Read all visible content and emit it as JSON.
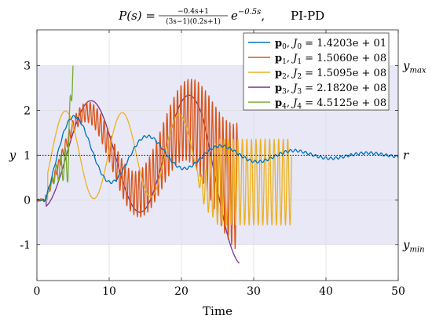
{
  "chart_data": {
    "type": "line",
    "title": {
      "lhs": "P(s) = ",
      "num": "−0.4s+1",
      "den": "(3s−1)(0.2s+1)",
      "exp_base": "e",
      "exp": "−0.5s",
      "sep": ",",
      "suffix": "PI-PD"
    },
    "xlabel": "Time",
    "ylabel": "y",
    "xlim": [
      0,
      50
    ],
    "ylim": [
      -1.8,
      3.8
    ],
    "xticks": [
      0,
      10,
      20,
      30,
      40,
      50
    ],
    "yticks": [
      -1,
      0,
      1,
      2,
      3
    ],
    "ytick_labels": [
      "-1",
      "0",
      "1",
      "2",
      "3"
    ],
    "grid": true,
    "band": {
      "ymin": -1,
      "ymax": 3,
      "color": "#e8e8f7"
    },
    "reference": {
      "y": 1
    },
    "right_labels": [
      {
        "name": "ymax",
        "base": "y",
        "sub": "max",
        "y": 3
      },
      {
        "name": "r",
        "base": "r",
        "sub": "",
        "y": 1
      },
      {
        "name": "ymin",
        "base": "y",
        "sub": "min",
        "y": -1
      }
    ],
    "legend_position": "top-right",
    "series": [
      {
        "name": "p0, J0 = 1.4203e+01",
        "p": "p",
        "idx": "0",
        "J": "J",
        "Jidx": "0",
        "val": "= 1.4203e + 01",
        "color": "#0072bd"
      },
      {
        "name": "p1, J1 = 1.5060e+08",
        "p": "p",
        "idx": "1",
        "J": "J",
        "Jidx": "1",
        "val": "= 1.5060e + 08",
        "color": "#d95319"
      },
      {
        "name": "p2, J2 = 1.5095e+08",
        "p": "p",
        "idx": "2",
        "J": "J",
        "Jidx": "2",
        "val": "= 1.5095e + 08",
        "color": "#edb120"
      },
      {
        "name": "p3, J3 = 2.1820e+08",
        "p": "p",
        "idx": "3",
        "J": "J",
        "Jidx": "3",
        "val": "= 2.1820e + 08",
        "color": "#7e2f8e"
      },
      {
        "name": "p4, J4 = 4.5125e+08",
        "p": "p",
        "idx": "4",
        "J": "J",
        "Jidx": "4",
        "val": "= 4.5125e + 08",
        "color": "#77ac30"
      }
    ]
  }
}
